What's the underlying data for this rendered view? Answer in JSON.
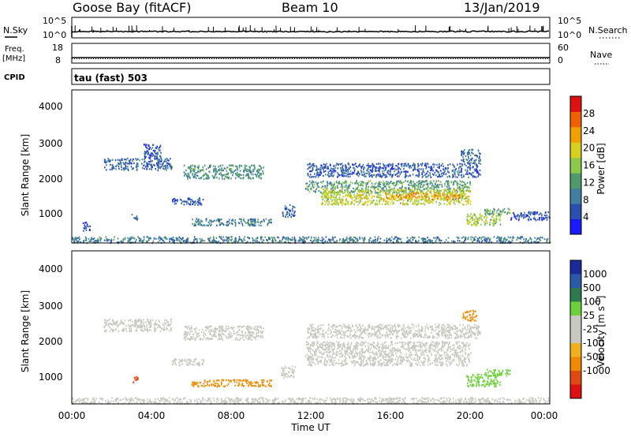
{
  "header": {
    "station": "Goose Bay (fitACF)",
    "beam": "Beam 10",
    "date": "13/Jan/2019"
  },
  "strips": {
    "nsky_label": "N.Sky",
    "nsky_ticks": [
      "10^5",
      "10^0"
    ],
    "nsearch_label": "N.Search",
    "nsearch_ticks": [
      "10^5",
      "10^0"
    ],
    "freq_label_1": "Freq.",
    "freq_label_2": "[MHz]",
    "freq_ticks": [
      "18",
      "8"
    ],
    "nave_label": "Nave",
    "nave_ticks": [
      "60",
      "0"
    ],
    "cpid_label": "CPID",
    "cpid_value": "tau (fast) 503"
  },
  "colors": {
    "power": [
      "#1a1aff",
      "#2a4fb0",
      "#3f7fa0",
      "#4f9a6a",
      "#8cc84a",
      "#d8d020",
      "#f0a000",
      "#f06000",
      "#e01010"
    ],
    "velocity": [
      "#e01010",
      "#e04a10",
      "#f08a00",
      "#f0b020",
      "#c8c8c0",
      "#c8c8c0",
      "#6ed03a",
      "#2e7a4f",
      "#2b5aa8",
      "#1a2a9a"
    ]
  },
  "chart_data": [
    {
      "type": "heatmap",
      "panel": "power",
      "ylabel": "Slant Range [km]",
      "yticks": [
        "4000",
        "3000",
        "2000",
        "1000"
      ],
      "ylim": [
        180,
        4600
      ],
      "xlim": [
        0,
        24
      ],
      "colorbar_label": "Power [dB]",
      "colorbar_ticks": [
        "28",
        "24",
        "20",
        "16",
        "12",
        "8",
        "4"
      ],
      "colorbar_range": [
        0,
        32
      ],
      "echo_regions": [
        {
          "x0": 1.6,
          "x1": 5.0,
          "y0": 2300,
          "y1": 2650,
          "power": 7
        },
        {
          "x0": 3.6,
          "x1": 4.5,
          "y0": 2600,
          "y1": 3050,
          "power": 6
        },
        {
          "x0": 5.6,
          "x1": 9.6,
          "y0": 2050,
          "y1": 2450,
          "power": 11
        },
        {
          "x0": 5.0,
          "x1": 6.6,
          "y0": 1300,
          "y1": 1500,
          "power": 6
        },
        {
          "x0": 3.0,
          "x1": 3.3,
          "y0": 850,
          "y1": 1050,
          "power": 9
        },
        {
          "x0": 6.0,
          "x1": 10.0,
          "y0": 700,
          "y1": 900,
          "power": 9
        },
        {
          "x0": 10.5,
          "x1": 11.2,
          "y0": 950,
          "y1": 1300,
          "power": 7
        },
        {
          "x0": 11.7,
          "x1": 20.0,
          "y0": 1650,
          "y1": 2000,
          "power": 12
        },
        {
          "x0": 12.5,
          "x1": 20.0,
          "y0": 1300,
          "y1": 1750,
          "power": 18
        },
        {
          "x0": 15.5,
          "x1": 19.5,
          "y0": 1450,
          "y1": 1650,
          "power": 23
        },
        {
          "x0": 11.8,
          "x1": 20.5,
          "y0": 2100,
          "y1": 2500,
          "power": 6
        },
        {
          "x0": 19.5,
          "x1": 20.5,
          "y0": 2500,
          "y1": 2900,
          "power": 8
        },
        {
          "x0": 19.8,
          "x1": 21.5,
          "y0": 700,
          "y1": 1050,
          "power": 17
        },
        {
          "x0": 20.7,
          "x1": 22.0,
          "y0": 1000,
          "y1": 1200,
          "power": 12
        },
        {
          "x0": 22.0,
          "x1": 24.0,
          "y0": 850,
          "y1": 1100,
          "power": 5
        },
        {
          "x0": 0.0,
          "x1": 24.0,
          "y0": 200,
          "y1": 380,
          "power": 9
        },
        {
          "x0": 0.5,
          "x1": 0.9,
          "y0": 550,
          "y1": 800,
          "power": 5
        }
      ]
    },
    {
      "type": "heatmap",
      "panel": "velocity",
      "ylabel": "Slant Range [km]",
      "yticks": [
        "4000",
        "3000",
        "2000",
        "1000"
      ],
      "ylim": [
        180,
        4600
      ],
      "xlim": [
        0,
        24
      ],
      "xticks": [
        "00:00",
        "04:00",
        "08:00",
        "12:00",
        "16:00",
        "20:00",
        "00:00"
      ],
      "xlabel": "Time UT",
      "colorbar_label": "Velocity [m s",
      "colorbar_label_exponent": "-1",
      "colorbar_label_end": "]",
      "colorbar_ticks": [
        "1000",
        "500",
        "100",
        "25",
        "-25",
        "-100",
        "-500",
        "-1000"
      ],
      "echo_regions": [
        {
          "x0": 1.6,
          "x1": 5.0,
          "y0": 2300,
          "y1": 2650,
          "v": 0
        },
        {
          "x0": 5.6,
          "x1": 9.6,
          "y0": 2050,
          "y1": 2450,
          "v": 0
        },
        {
          "x0": 5.0,
          "x1": 6.6,
          "y0": 1300,
          "y1": 1500,
          "v": 0
        },
        {
          "x0": 3.0,
          "x1": 3.3,
          "y0": 800,
          "y1": 1000,
          "v": -200
        },
        {
          "x0": 6.0,
          "x1": 10.0,
          "y0": 700,
          "y1": 900,
          "v": -60
        },
        {
          "x0": 10.5,
          "x1": 11.2,
          "y0": 950,
          "y1": 1300,
          "v": 0
        },
        {
          "x0": 11.7,
          "x1": 20.0,
          "y0": 1300,
          "y1": 2000,
          "v": 0
        },
        {
          "x0": 11.8,
          "x1": 20.5,
          "y0": 2100,
          "y1": 2500,
          "v": 0
        },
        {
          "x0": 19.6,
          "x1": 20.3,
          "y0": 2600,
          "y1": 2900,
          "v": -60
        },
        {
          "x0": 19.8,
          "x1": 21.5,
          "y0": 700,
          "y1": 1050,
          "v": 50
        },
        {
          "x0": 20.7,
          "x1": 22.0,
          "y0": 1000,
          "y1": 1200,
          "v": 50
        },
        {
          "x0": 0.0,
          "x1": 24.0,
          "y0": 200,
          "y1": 380,
          "v": 0
        }
      ]
    }
  ]
}
